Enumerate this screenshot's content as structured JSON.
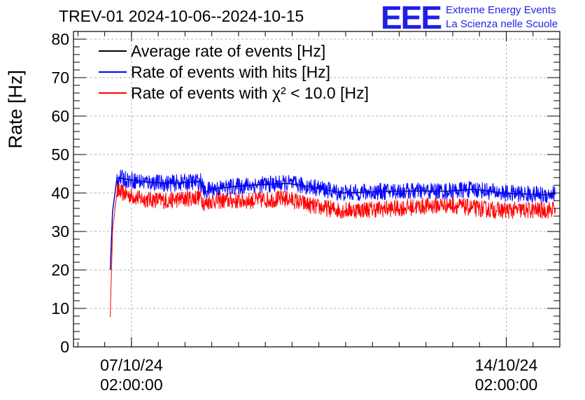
{
  "logo": {
    "mark": "EEE",
    "line1": "Extreme Energy Events",
    "line2": "La Scienza nelle Scuole"
  },
  "chart_data": {
    "type": "line",
    "title": "TREV-01 2024-10-06--2024-10-15",
    "ylabel": "Rate [Hz]",
    "xlabel": "",
    "ylim": [
      0,
      82
    ],
    "xlim": [
      "2024-10-06 00:00",
      "2024-10-15 02:00"
    ],
    "yticks": [
      0,
      10,
      20,
      30,
      40,
      50,
      60,
      70,
      80
    ],
    "xticks": [
      {
        "x": "2024-10-07 02:00",
        "label": [
          "07/10/24",
          "02:00:00"
        ]
      },
      {
        "x": "2024-10-14 02:00",
        "label": [
          "14/10/24",
          "02:00:00"
        ]
      }
    ],
    "grid": true,
    "legend": "top-left",
    "series": [
      {
        "name": "Average rate of events [Hz]",
        "color": "#000000",
        "noise": 0,
        "points": [
          [
            "2024-10-06 16:30",
            20
          ],
          [
            "2024-10-06 17:30",
            35
          ],
          [
            "2024-10-06 19:30",
            44
          ],
          [
            "2024-10-07 06:00",
            43
          ],
          [
            "2024-10-07 18:00",
            42.5
          ],
          [
            "2024-10-08 09:00",
            43
          ],
          [
            "2024-10-08 11:00",
            40
          ],
          [
            "2024-10-08 13:00",
            41
          ],
          [
            "2024-10-09 06:00",
            42
          ],
          [
            "2024-10-10 00:00",
            42.5
          ],
          [
            "2024-10-10 12:00",
            41.5
          ],
          [
            "2024-10-11 00:00",
            40
          ],
          [
            "2024-10-12 00:00",
            40.5
          ],
          [
            "2024-10-13 00:00",
            40.5
          ],
          [
            "2024-10-13 12:00",
            41
          ],
          [
            "2024-10-14 00:00",
            40
          ],
          [
            "2024-10-14 20:00",
            39.5
          ],
          [
            "2024-10-15 00:00",
            40
          ]
        ]
      },
      {
        "name": "Rate of events with hits [Hz]",
        "color": "#0000ff",
        "noise": 2.2,
        "points": [
          [
            "2024-10-06 16:30",
            20
          ],
          [
            "2024-10-06 17:30",
            35
          ],
          [
            "2024-10-06 19:30",
            44
          ],
          [
            "2024-10-07 06:00",
            43
          ],
          [
            "2024-10-07 18:00",
            42.5
          ],
          [
            "2024-10-08 09:00",
            43
          ],
          [
            "2024-10-08 11:00",
            40
          ],
          [
            "2024-10-08 13:00",
            41
          ],
          [
            "2024-10-09 06:00",
            42
          ],
          [
            "2024-10-10 00:00",
            42.5
          ],
          [
            "2024-10-10 12:00",
            41.5
          ],
          [
            "2024-10-11 00:00",
            40
          ],
          [
            "2024-10-12 00:00",
            40.5
          ],
          [
            "2024-10-13 00:00",
            40.5
          ],
          [
            "2024-10-13 12:00",
            41
          ],
          [
            "2024-10-14 00:00",
            40
          ],
          [
            "2024-10-14 20:00",
            39.5
          ],
          [
            "2024-10-15 00:00",
            40
          ]
        ]
      },
      {
        "name": "Rate of events with χ² < 10.0 [Hz]",
        "color": "#ff0000",
        "noise": 2.2,
        "points": [
          [
            "2024-10-06 16:30",
            8
          ],
          [
            "2024-10-06 17:30",
            30
          ],
          [
            "2024-10-06 19:30",
            40.5
          ],
          [
            "2024-10-07 06:00",
            38.5
          ],
          [
            "2024-10-07 18:00",
            38
          ],
          [
            "2024-10-08 09:00",
            39
          ],
          [
            "2024-10-08 11:00",
            37
          ],
          [
            "2024-10-08 13:00",
            38
          ],
          [
            "2024-10-09 06:00",
            38
          ],
          [
            "2024-10-10 00:00",
            38.5
          ],
          [
            "2024-10-10 12:00",
            36.5
          ],
          [
            "2024-10-11 00:00",
            35.5
          ],
          [
            "2024-10-12 00:00",
            36
          ],
          [
            "2024-10-13 00:00",
            37
          ],
          [
            "2024-10-13 12:00",
            36
          ],
          [
            "2024-10-14 00:00",
            35.5
          ],
          [
            "2024-10-14 20:00",
            35.5
          ],
          [
            "2024-10-15 00:00",
            36
          ]
        ]
      }
    ]
  }
}
